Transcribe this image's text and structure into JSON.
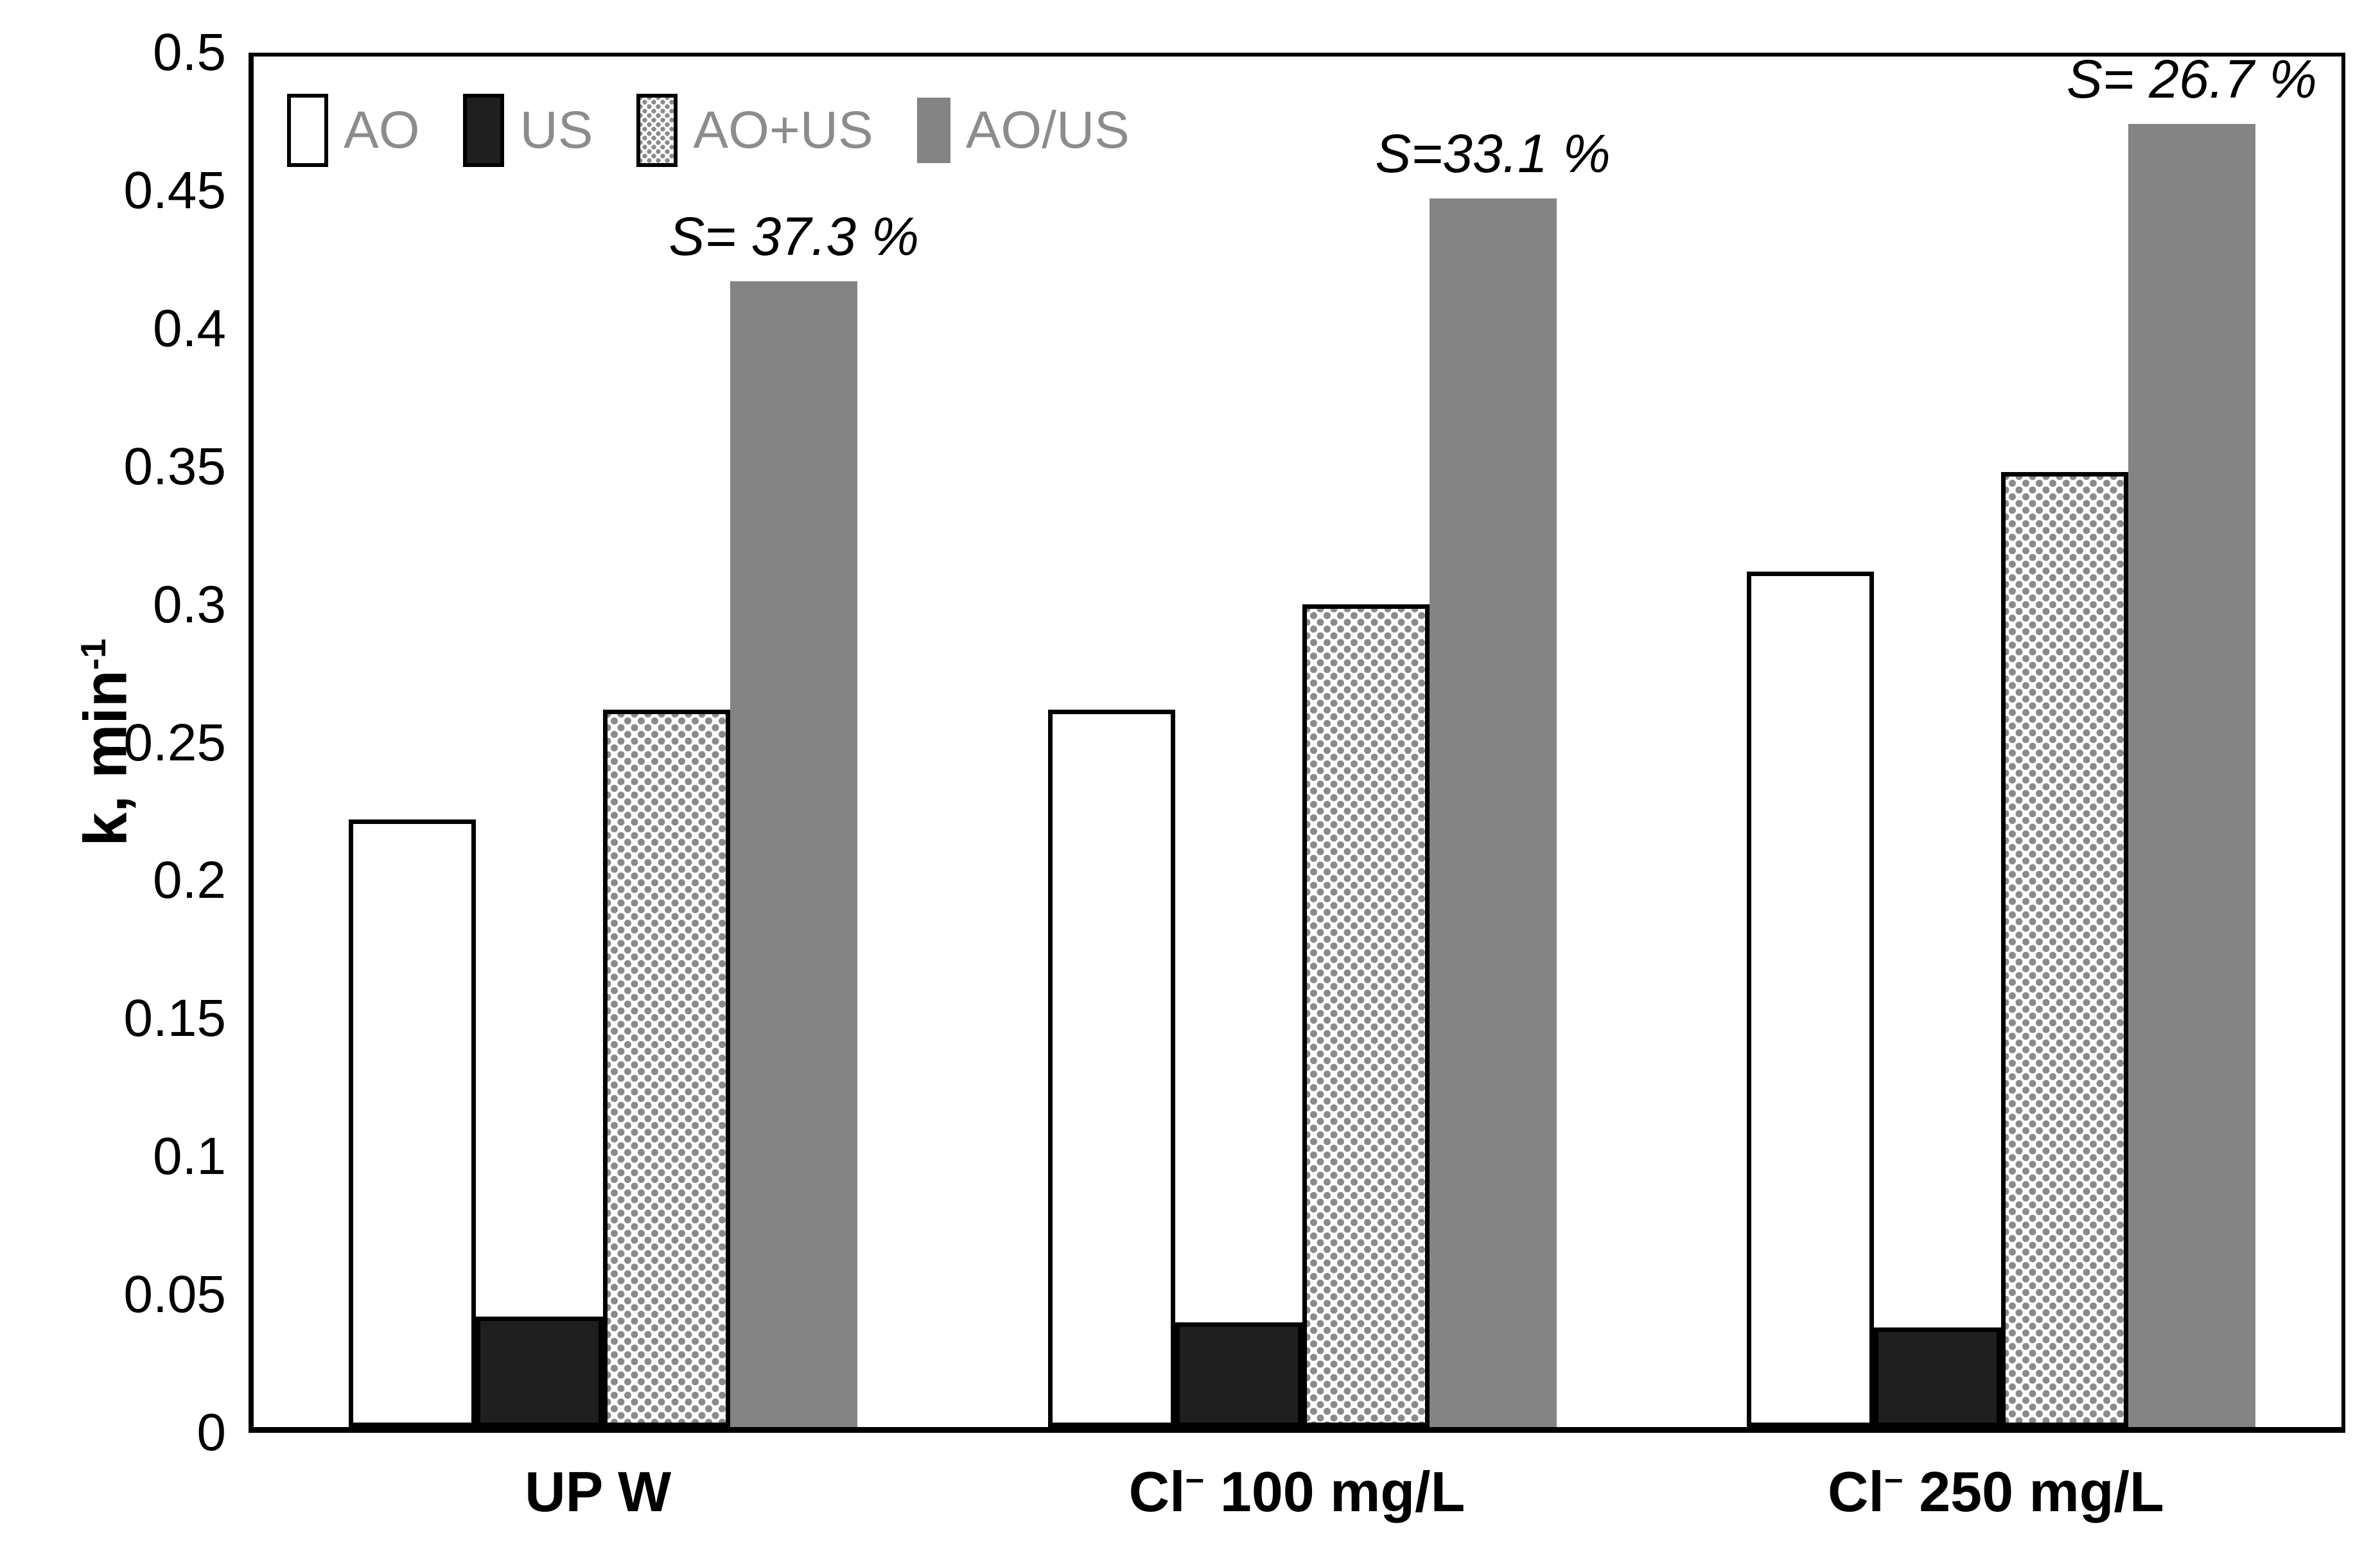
{
  "figure": {
    "background": "#ffffff"
  },
  "chart_data": {
    "type": "bar",
    "title": "",
    "xlabel": "",
    "ylabel": "k, min⁻¹",
    "ylabel_parts": {
      "base": "k, min",
      "sup": "-1"
    },
    "ylim": [
      0,
      0.5
    ],
    "ytick_step": 0.05,
    "yticks": [
      "0",
      "0.05",
      "0.1",
      "0.15",
      "0.2",
      "0.25",
      "0.3",
      "0.35",
      "0.4",
      "0.45",
      "0.5"
    ],
    "grid": false,
    "legend_position": "top-left-inside",
    "categories": [
      "UP W",
      "Cl⁻ 100 mg/L",
      "Cl⁻ 250 mg/L"
    ],
    "categories_parts": [
      {
        "base": "UP W",
        "sup": "",
        "rest": ""
      },
      {
        "base": "Cl",
        "sup": "−",
        "rest": " 100 mg/L"
      },
      {
        "base": "Cl",
        "sup": "−",
        "rest": " 250 mg/L"
      }
    ],
    "series": [
      {
        "name": "AO",
        "style": "white-outline",
        "values": [
          0.22,
          0.26,
          0.31
        ]
      },
      {
        "name": "US",
        "style": "solid-dark",
        "values": [
          0.04,
          0.038,
          0.036
        ]
      },
      {
        "name": "AO+US",
        "style": "dotted",
        "values": [
          0.26,
          0.298,
          0.346
        ]
      },
      {
        "name": "AO/US",
        "style": "solid-gray",
        "values": [
          0.415,
          0.445,
          0.472
        ]
      }
    ],
    "annotations": [
      {
        "text": "S= 37.3 %",
        "category_index": 0,
        "series": "AO/US"
      },
      {
        "text": "S=33.1 %",
        "category_index": 1,
        "series": "AO/US"
      },
      {
        "text": "S= 26.7 %",
        "category_index": 2,
        "series": "AO/US"
      }
    ],
    "colors": {
      "background": "#ffffff",
      "axis_and_text": "#000000",
      "bar_border": "#000000",
      "dark_fill": "#1f1f1f",
      "gray_fill": "#848484",
      "dot_pattern": "#8a8a8a",
      "legend_text": "#8c8c8c"
    }
  }
}
